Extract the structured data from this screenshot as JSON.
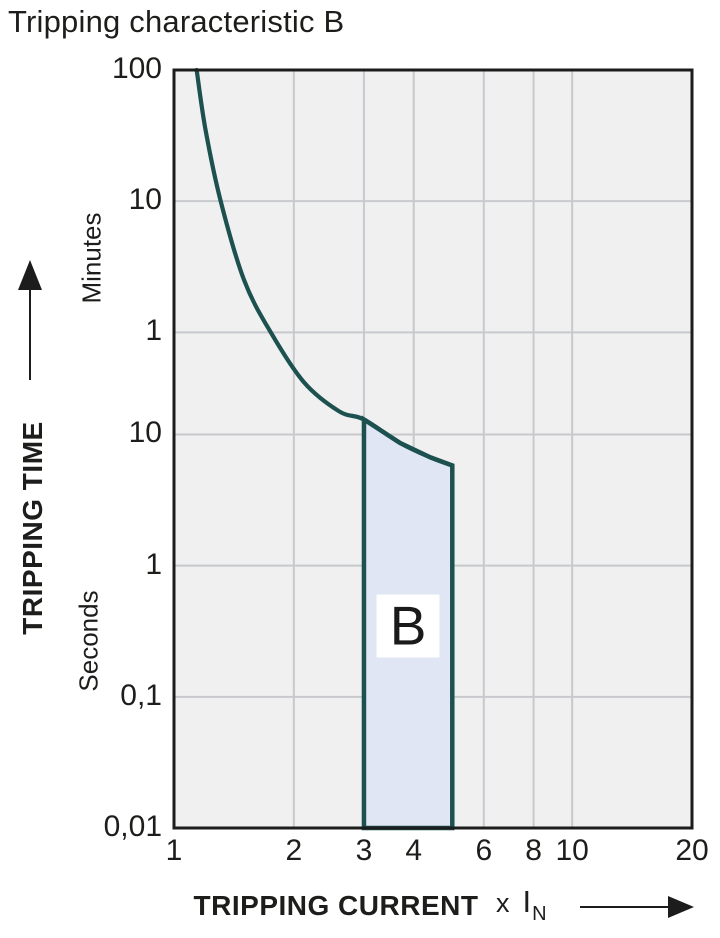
{
  "title": "Tripping characteristic B",
  "y_axis": {
    "title": "TRIPPING TIME",
    "unit_top": "Minutes",
    "unit_bottom": "Seconds"
  },
  "x_axis": {
    "title": "TRIPPING CURRENT",
    "unit_prefix": "x",
    "unit_symbol": "I",
    "unit_subscript": "N"
  },
  "chart_data": {
    "type": "line",
    "title": "Tripping characteristic B",
    "xlabel": "TRIPPING CURRENT x IN (multiple of rated current)",
    "ylabel": "TRIPPING TIME (minutes above 1 min, seconds below)",
    "x_scale": "log",
    "y_scale": "log",
    "x_range": [
      1,
      20
    ],
    "y_range_seconds": [
      0.01,
      6000
    ],
    "grid": true,
    "x_ticks": [
      {
        "label": "1",
        "value": 1
      },
      {
        "label": "2",
        "value": 2
      },
      {
        "label": "3",
        "value": 3
      },
      {
        "label": "4",
        "value": 4
      },
      {
        "label": "6",
        "value": 6
      },
      {
        "label": "8",
        "value": 8
      },
      {
        "label": "10",
        "value": 10
      },
      {
        "label": "20",
        "value": 20
      }
    ],
    "y_ticks": [
      {
        "label": "100",
        "unit": "minutes",
        "seconds": 6000
      },
      {
        "label": "10",
        "unit": "minutes",
        "seconds": 600
      },
      {
        "label": "1",
        "unit": "minutes",
        "seconds": 60
      },
      {
        "label": "10",
        "unit": "seconds",
        "seconds": 10
      },
      {
        "label": "1",
        "unit": "seconds",
        "seconds": 1
      },
      {
        "label": "0,1",
        "unit": "seconds",
        "seconds": 0.1
      },
      {
        "label": "0,01",
        "unit": "seconds",
        "seconds": 0.01
      }
    ],
    "series": [
      {
        "name": "thermal-tripping-curve",
        "points": [
          [
            1.14,
            6000
          ],
          [
            1.2,
            2100
          ],
          [
            1.31,
            600
          ],
          [
            1.5,
            150
          ],
          [
            1.75,
            60
          ],
          [
            2.12,
            25
          ],
          [
            2.6,
            15
          ],
          [
            3.0,
            13
          ],
          [
            3.7,
            8.6
          ],
          [
            4.4,
            6.7
          ],
          [
            5.0,
            5.8
          ]
        ]
      }
    ],
    "band": {
      "label": "B",
      "x_min": 3,
      "x_max": 5,
      "y_bottom_seconds": 0.01,
      "y_top_follows_curve": true
    }
  },
  "colors": {
    "curve": "#1c514f",
    "band_fill": "#e0e6f4",
    "band_label_bg": "#ffffff",
    "plot_bg": "#f0f0f1",
    "grid": "#c7c9cc",
    "border": "#1c1c1c",
    "text": "#1d1d1b"
  }
}
